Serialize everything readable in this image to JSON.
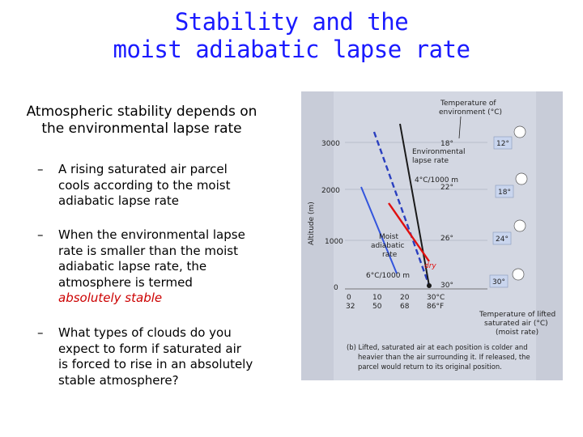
{
  "title": {
    "line1": "Stability and the",
    "line2": "moist adiabatic lapse rate"
  },
  "intro": {
    "line1": "Atmospheric stability depends on",
    "line2": "the environmental lapse rate"
  },
  "bullets": [
    {
      "dash": "–",
      "lines": [
        "A rising saturated air parcel",
        "cools according to the moist",
        "adiabatic lapse rate"
      ]
    },
    {
      "dash": "–",
      "lines": [
        "When the environmental lapse",
        "rate is smaller than the moist",
        "adiabatic lapse rate, the",
        "atmosphere is termed"
      ],
      "emphasis": "absolutely stable"
    },
    {
      "dash": "–",
      "lines": [
        "What types of clouds do you",
        "expect to form if saturated air",
        "is forced to rise in an absolutely",
        "stable atmosphere?"
      ]
    }
  ],
  "figure": {
    "header": {
      "line1": "Temperature of",
      "line2": "environment (°C)"
    },
    "y_axis_label": "Altitude (m)",
    "y_ticks": [
      "3000",
      "2000",
      "1000",
      "0"
    ],
    "env_label": {
      "line1": "Environmental",
      "line2": "lapse rate",
      "rate": "4°C/1000 m"
    },
    "moist_label": {
      "line1": "Moist",
      "line2": "adiabatic",
      "line3": "rate",
      "rate": "6°C/1000 m"
    },
    "env_temps": [
      "18°",
      "22°",
      "26°",
      "30°"
    ],
    "parcel_temps": [
      "12°",
      "18°",
      "24°",
      "30°"
    ],
    "x_celsius": [
      "0",
      "10",
      "20",
      "30°C"
    ],
    "x_fahrenheit": [
      "32",
      "50",
      "68",
      "86°F"
    ],
    "dry_label": "dry",
    "footer": {
      "line1": "Temperature of lifted",
      "line2": "saturated air (°C)",
      "line3": "(moist rate)"
    },
    "caption": {
      "line1": "(b)  Lifted, saturated air at each position is colder and",
      "line2": "heavier than the air surrounding it. If released, the",
      "line3": "parcel would return to its original position."
    },
    "colors": {
      "background": "#d3d7e2",
      "env_line": "#1a1a1a",
      "moist_line": "#2a3fbf",
      "dry_line": "#e01010"
    }
  }
}
